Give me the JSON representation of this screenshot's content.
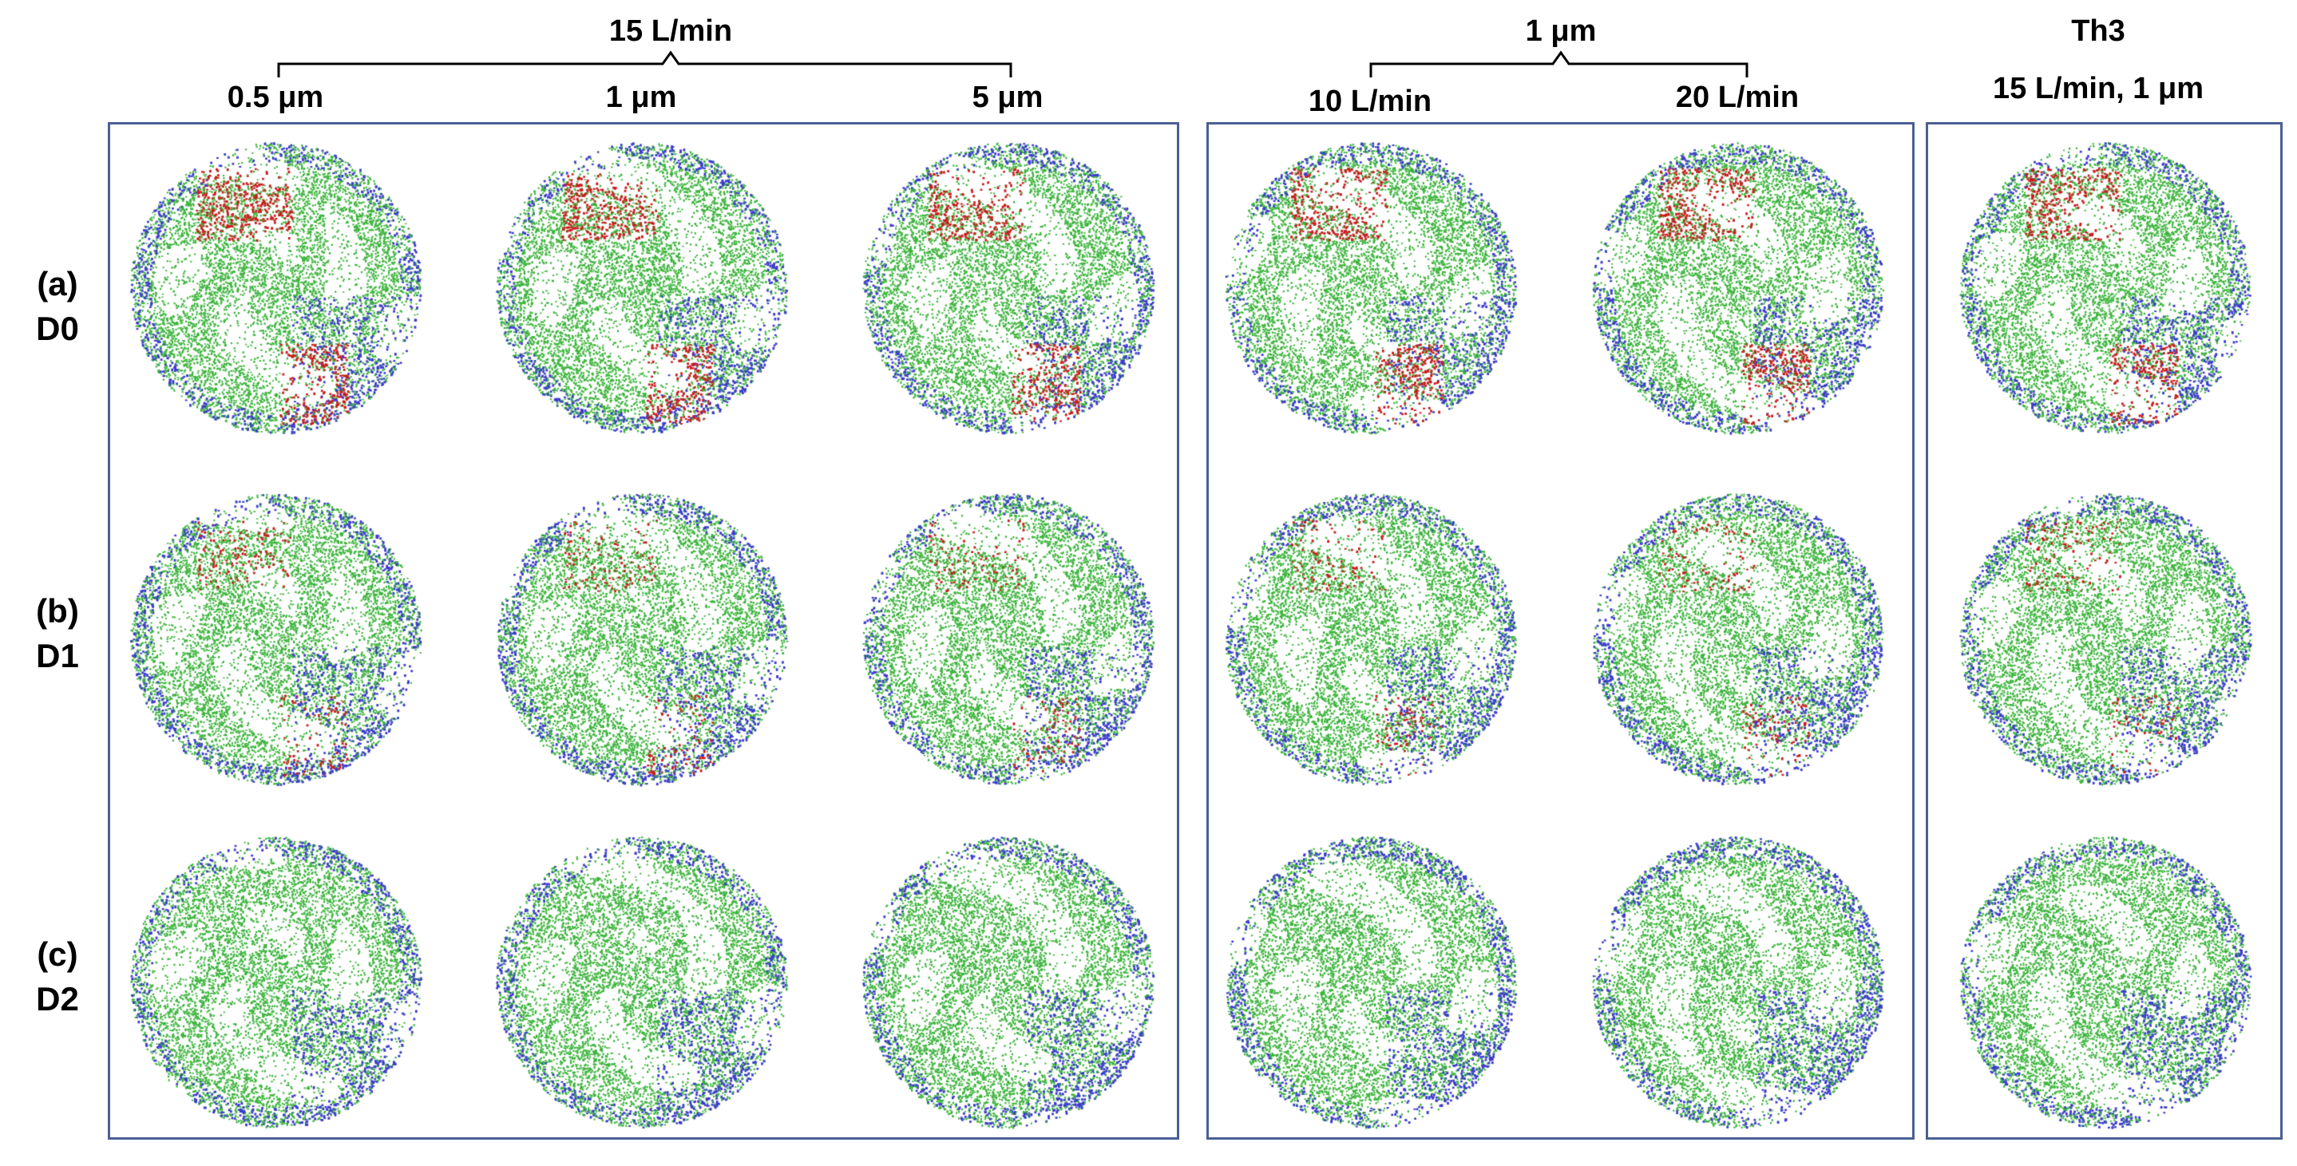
{
  "groups": {
    "flow_15": "15 L/min",
    "size_1um": "1 μm",
    "th3": "Th3"
  },
  "columns": {
    "c05": "0.5 μm",
    "c1": "1 μm",
    "c5": "5 μm",
    "c10L": "10 L/min",
    "c20L": "20 L/min",
    "cth3": "15 L/min, 1 μm"
  },
  "rows": [
    {
      "letter": "(a)",
      "name": "D0"
    },
    {
      "letter": "(b)",
      "name": "D1"
    },
    {
      "letter": "(c)",
      "name": "D2"
    }
  ],
  "colors": {
    "green": "#3cb43c",
    "blue": "#3c3ccc",
    "red": "#c81e1e",
    "frame": "#4a5f94",
    "bracket": "#000000"
  }
}
